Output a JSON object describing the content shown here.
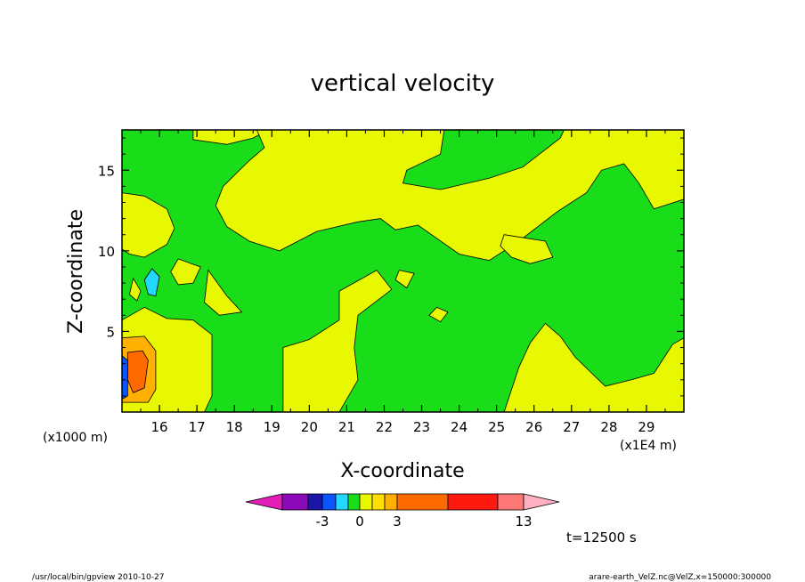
{
  "chart_data": {
    "type": "heatmap",
    "title": "vertical velocity",
    "xlabel": "X-coordinate",
    "ylabel": "Z-coordinate",
    "x_unit_label": "(x1E4 m)",
    "y_unit_label": "(x1000 m)",
    "xlim": [
      15.0,
      30.0
    ],
    "ylim": [
      0.0,
      17.5
    ],
    "x_ticks": [
      "16",
      "17",
      "18",
      "19",
      "20",
      "21",
      "22",
      "23",
      "24",
      "25",
      "26",
      "27",
      "28",
      "29"
    ],
    "y_ticks": [
      "5",
      "10",
      "15"
    ],
    "x_tick_values": [
      16,
      17,
      18,
      19,
      20,
      21,
      22,
      23,
      24,
      25,
      26,
      27,
      28,
      29
    ],
    "y_tick_values": [
      5,
      10,
      15
    ],
    "colorbar": {
      "colors": [
        "#e31fb8",
        "#8a0ab8",
        "#1a16a6",
        "#0b55ff",
        "#22d8ff",
        "#18dd18",
        "#e8f800",
        "#ffe000",
        "#ffb000",
        "#ff6a00",
        "#ff1a10",
        "#ff7878",
        "#ffb0c0"
      ],
      "labels": [
        "-3",
        "0",
        "3",
        "13"
      ]
    },
    "time_label": "t=12500 s",
    "background_color": "#18dd18",
    "regions": [
      {
        "color": "#e8f800",
        "pts": [
          [
            15,
            17.5
          ],
          [
            16.9,
            17.5
          ],
          [
            16.9,
            16.9
          ],
          [
            17.8,
            16.6
          ],
          [
            18.5,
            17.0
          ],
          [
            18.9,
            17.5
          ],
          [
            15,
            17.5
          ]
        ]
      },
      {
        "color": "#e8f800",
        "pts": [
          [
            18.6,
            17.5
          ],
          [
            23.6,
            17.5
          ],
          [
            23.5,
            16.0
          ],
          [
            22.6,
            15.0
          ],
          [
            22.5,
            14.2
          ],
          [
            23.5,
            13.8
          ],
          [
            24.8,
            14.5
          ],
          [
            25.7,
            15.2
          ],
          [
            26.7,
            17.0
          ],
          [
            26.8,
            17.5
          ],
          [
            30,
            17.5
          ],
          [
            30,
            13.2
          ],
          [
            29.2,
            12.6
          ],
          [
            28.8,
            14.2
          ],
          [
            28.4,
            15.4
          ],
          [
            27.8,
            15.0
          ],
          [
            27.4,
            13.6
          ],
          [
            26.6,
            12.4
          ],
          [
            25.6,
            10.6
          ],
          [
            24.8,
            9.4
          ],
          [
            24.0,
            9.8
          ],
          [
            22.9,
            11.6
          ],
          [
            22.3,
            11.3
          ],
          [
            21.9,
            12.0
          ],
          [
            21.3,
            11.8
          ],
          [
            20.2,
            11.2
          ],
          [
            19.2,
            10.0
          ],
          [
            18.4,
            10.6
          ],
          [
            17.8,
            11.5
          ],
          [
            17.5,
            12.8
          ],
          [
            17.7,
            14.0
          ],
          [
            18.4,
            15.6
          ],
          [
            18.8,
            16.4
          ],
          [
            18.6,
            17.5
          ]
        ]
      },
      {
        "color": "#e8f800",
        "pts": [
          [
            15,
            13.6
          ],
          [
            15.6,
            13.4
          ],
          [
            16.2,
            12.6
          ],
          [
            16.4,
            11.4
          ],
          [
            16.2,
            10.4
          ],
          [
            15.6,
            9.6
          ],
          [
            15.2,
            9.8
          ],
          [
            15,
            10.1
          ]
        ]
      },
      {
        "color": "#e8f800",
        "pts": [
          [
            25.2,
            11.0
          ],
          [
            26.3,
            10.6
          ],
          [
            26.5,
            9.6
          ],
          [
            25.9,
            9.2
          ],
          [
            25.4,
            9.6
          ],
          [
            25.1,
            10.3
          ]
        ]
      },
      {
        "color": "#e8f800",
        "pts": [
          [
            17.3,
            8.8
          ],
          [
            17.8,
            7.2
          ],
          [
            18.2,
            6.2
          ],
          [
            17.6,
            6.0
          ],
          [
            17.2,
            6.8
          ]
        ]
      },
      {
        "color": "#e8f800",
        "pts": [
          [
            16.5,
            9.5
          ],
          [
            17.1,
            9.0
          ],
          [
            16.9,
            8.0
          ],
          [
            16.5,
            7.9
          ],
          [
            16.3,
            8.7
          ]
        ]
      },
      {
        "color": "#e8f800",
        "pts": [
          [
            15.3,
            8.3
          ],
          [
            15.5,
            7.5
          ],
          [
            15.4,
            6.9
          ],
          [
            15.2,
            7.3
          ]
        ]
      },
      {
        "color": "#e8f800",
        "pts": [
          [
            22.4,
            8.8
          ],
          [
            22.8,
            8.6
          ],
          [
            22.6,
            7.7
          ],
          [
            22.3,
            8.2
          ]
        ]
      },
      {
        "color": "#e8f800",
        "pts": [
          [
            23.4,
            6.5
          ],
          [
            23.7,
            6.2
          ],
          [
            23.5,
            5.6
          ],
          [
            23.2,
            6.0
          ]
        ]
      },
      {
        "color": "#e8f800",
        "pts": [
          [
            15,
            5.7
          ],
          [
            15.6,
            6.5
          ],
          [
            16.2,
            5.8
          ],
          [
            16.9,
            5.7
          ],
          [
            17.4,
            4.8
          ],
          [
            17.4,
            1.0
          ],
          [
            17.2,
            0
          ],
          [
            15,
            0
          ]
        ]
      },
      {
        "color": "#e8f800",
        "pts": [
          [
            19.3,
            0
          ],
          [
            19.3,
            4.0
          ],
          [
            20.0,
            4.5
          ],
          [
            20.8,
            5.7
          ],
          [
            20.8,
            7.5
          ],
          [
            21.8,
            8.8
          ],
          [
            22.2,
            7.6
          ],
          [
            21.3,
            6.0
          ],
          [
            21.2,
            4.0
          ],
          [
            21.3,
            2.0
          ],
          [
            20.8,
            0
          ]
        ]
      },
      {
        "color": "#e8f800",
        "pts": [
          [
            25.2,
            0
          ],
          [
            25.6,
            2.8
          ],
          [
            25.9,
            4.3
          ],
          [
            26.3,
            5.5
          ],
          [
            26.7,
            4.7
          ],
          [
            27.1,
            3.4
          ],
          [
            27.9,
            1.6
          ],
          [
            28.6,
            2.0
          ],
          [
            29.2,
            2.4
          ],
          [
            29.7,
            4.2
          ],
          [
            30,
            4.6
          ],
          [
            30,
            0
          ]
        ]
      },
      {
        "color": "#22d8ff",
        "pts": [
          [
            15.8,
            8.9
          ],
          [
            16.0,
            8.4
          ],
          [
            15.9,
            7.2
          ],
          [
            15.7,
            7.3
          ],
          [
            15.6,
            8.2
          ]
        ]
      },
      {
        "color": "#ffb000",
        "pts": [
          [
            15.0,
            4.6
          ],
          [
            15.6,
            4.7
          ],
          [
            15.9,
            3.8
          ],
          [
            15.9,
            1.4
          ],
          [
            15.7,
            0.6
          ],
          [
            15.0,
            0.6
          ]
        ]
      },
      {
        "color": "#ff6a00",
        "pts": [
          [
            15.15,
            3.7
          ],
          [
            15.55,
            3.8
          ],
          [
            15.7,
            3.2
          ],
          [
            15.6,
            1.5
          ],
          [
            15.3,
            1.2
          ],
          [
            15.15,
            2.0
          ]
        ]
      },
      {
        "color": "#0b55ff",
        "pts": [
          [
            15.0,
            3.5
          ],
          [
            15.15,
            3.2
          ],
          [
            15.15,
            1.0
          ],
          [
            15.0,
            0.8
          ]
        ]
      }
    ]
  },
  "footer": {
    "left": "/usr/local/bin/gpview  2010-10-27",
    "right": "arare-earth_VelZ.nc@VelZ,x=150000:300000"
  }
}
